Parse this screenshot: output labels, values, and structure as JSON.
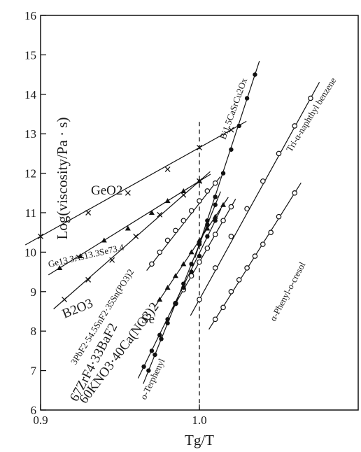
{
  "chart_data": {
    "type": "line",
    "title": "",
    "xlabel": "Tg/T",
    "ylabel": "Log(viscosity/Pa · s)",
    "xlim": [
      0.9,
      1.1
    ],
    "ylim": [
      6,
      16
    ],
    "x_ticks": [
      0.9,
      1.0
    ],
    "x_tick_labels": [
      "0.9",
      "1.0"
    ],
    "y_ticks": [
      6,
      7,
      8,
      9,
      10,
      11,
      12,
      13,
      14,
      15,
      16
    ],
    "y_tick_labels": [
      "6",
      "7",
      "8",
      "9",
      "10",
      "11",
      "12",
      "13",
      "14",
      "15",
      "16"
    ],
    "reference_line_x": 1.0,
    "grid": false,
    "legend": "none",
    "series": [
      {
        "name": "GeO2",
        "marker": "x",
        "x": [
          0.9,
          0.93,
          0.955,
          0.98,
          1.0,
          1.02
        ],
        "y": [
          10.4,
          11.0,
          11.5,
          12.1,
          12.65,
          13.1
        ]
      },
      {
        "name": "Ge13.3As13.3Se73.4",
        "marker": "triangle",
        "x": [
          0.912,
          0.925,
          0.94,
          0.955,
          0.97,
          0.98,
          0.99,
          1.0
        ],
        "y": [
          9.6,
          9.9,
          10.3,
          10.6,
          11.0,
          11.3,
          11.55,
          11.8
        ]
      },
      {
        "name": "B2O3",
        "marker": "x",
        "x": [
          0.915,
          0.93,
          0.945,
          0.96,
          0.975,
          0.99,
          1.0
        ],
        "y": [
          8.8,
          9.3,
          9.8,
          10.4,
          10.95,
          11.45,
          11.8
        ]
      },
      {
        "name": "3PbF2·54.5SnF2·35Sn(PO3)2",
        "marker": "circle",
        "x": [
          0.97,
          0.975,
          0.98,
          0.985,
          0.99,
          0.995,
          1.0,
          1.005,
          1.01
        ],
        "y": [
          9.7,
          10.0,
          10.3,
          10.55,
          10.8,
          11.05,
          11.3,
          11.55,
          11.75
        ]
      },
      {
        "name": "Se",
        "marker": "triangle",
        "x": [
          0.975,
          0.98,
          0.985,
          0.99,
          0.995,
          1.0,
          1.005,
          1.01,
          1.015
        ],
        "y": [
          8.8,
          9.1,
          9.4,
          9.7,
          10.0,
          10.3,
          10.6,
          10.9,
          11.2
        ]
      },
      {
        "name": "67ZrF4·33BaF2",
        "marker": "circle",
        "x": [
          0.985,
          0.99,
          0.995,
          1.0,
          1.005,
          1.01,
          1.015,
          1.02
        ],
        "y": [
          8.7,
          9.05,
          9.4,
          9.75,
          10.1,
          10.45,
          10.8,
          11.15
        ]
      },
      {
        "name": "60KNO3·40Ca(NO3)2",
        "marker": "filled-circle",
        "x": [
          0.965,
          0.97,
          0.975,
          0.98,
          0.985,
          0.99,
          0.995,
          1.0,
          1.005,
          1.01
        ],
        "y": [
          7.1,
          7.5,
          7.9,
          8.3,
          8.7,
          9.1,
          9.5,
          9.9,
          10.4,
          10.8
        ]
      },
      {
        "name": "Bi1.5CaSrCu2Ox",
        "marker": "filled-circle",
        "x": [
          1.0,
          1.005,
          1.01,
          1.015,
          1.02,
          1.025,
          1.03,
          1.035
        ],
        "y": [
          10.2,
          10.8,
          11.4,
          12.0,
          12.6,
          13.2,
          13.9,
          14.5
        ]
      },
      {
        "name": "o-Terphenyl",
        "marker": "filled-circle",
        "x": [
          0.968,
          0.972,
          0.976,
          0.98,
          0.985,
          0.99,
          0.995,
          1.0,
          1.005,
          1.01
        ],
        "y": [
          7.0,
          7.4,
          7.8,
          8.2,
          8.7,
          9.2,
          9.7,
          10.2,
          10.7,
          11.2
        ]
      },
      {
        "name": "Tri-α-naphthyl benzene",
        "marker": "circle",
        "x": [
          1.0,
          1.01,
          1.02,
          1.03,
          1.04,
          1.05,
          1.06,
          1.07
        ],
        "y": [
          8.8,
          9.6,
          10.4,
          11.1,
          11.8,
          12.5,
          13.2,
          13.9
        ]
      },
      {
        "name": "α-Phenyl-o-cresol",
        "marker": "circle",
        "x": [
          1.01,
          1.015,
          1.02,
          1.025,
          1.03,
          1.035,
          1.04,
          1.045,
          1.05,
          1.06
        ],
        "y": [
          8.3,
          8.6,
          9.0,
          9.3,
          9.6,
          9.9,
          10.2,
          10.5,
          10.9,
          11.5
        ]
      }
    ],
    "annotations": [
      "GeO2",
      "Ge13.3As13.3Se73.4",
      "B2O3",
      "3PbF2·54.5SnF2·35Sn(PO3)2",
      "Se",
      "67ZrF4·33BaF2",
      "60KNO3·40Ca(NO3)2",
      "o-Terphenyl",
      "Bi1.5CaSrCu2Ox",
      "Tri-α-naphthyl benzene",
      "α-Phenyl-o-cresol"
    ]
  }
}
